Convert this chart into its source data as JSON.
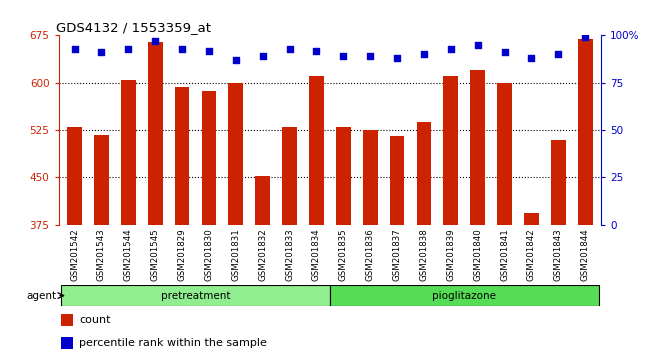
{
  "title": "GDS4132 / 1553359_at",
  "samples": [
    "GSM201542",
    "GSM201543",
    "GSM201544",
    "GSM201545",
    "GSM201829",
    "GSM201830",
    "GSM201831",
    "GSM201832",
    "GSM201833",
    "GSM201834",
    "GSM201835",
    "GSM201836",
    "GSM201837",
    "GSM201838",
    "GSM201839",
    "GSM201840",
    "GSM201841",
    "GSM201842",
    "GSM201843",
    "GSM201844"
  ],
  "counts": [
    530,
    518,
    605,
    665,
    593,
    587,
    600,
    452,
    530,
    610,
    530,
    525,
    515,
    538,
    610,
    620,
    600,
    393,
    510,
    670
  ],
  "percentile_ranks": [
    93,
    91,
    93,
    97,
    93,
    92,
    87,
    89,
    93,
    92,
    89,
    89,
    88,
    90,
    93,
    95,
    91,
    88,
    90,
    99
  ],
  "groups": [
    {
      "label": "pretreatment",
      "start": 0,
      "end": 9,
      "color": "#90EE90"
    },
    {
      "label": "pioglitazone",
      "start": 10,
      "end": 19,
      "color": "#55DD55"
    }
  ],
  "ylim_left": [
    375,
    675
  ],
  "ylim_right": [
    0,
    100
  ],
  "yticks_left": [
    375,
    450,
    525,
    600,
    675
  ],
  "yticks_right": [
    0,
    25,
    50,
    75,
    100
  ],
  "yticklabels_right": [
    "0",
    "25",
    "50",
    "75",
    "100%"
  ],
  "grid_yticks": [
    450,
    525,
    600
  ],
  "bar_color": "#CC2200",
  "dot_color": "#0000CC",
  "bg_color": "#C8C8C8",
  "plot_bg": "#FFFFFF",
  "left_axis_color": "#CC2200",
  "right_axis_color": "#0000CC",
  "agent_label": "agent",
  "legend_count_label": "count",
  "legend_percentile_label": "percentile rank within the sample",
  "bar_width": 0.55,
  "dot_size": 22
}
